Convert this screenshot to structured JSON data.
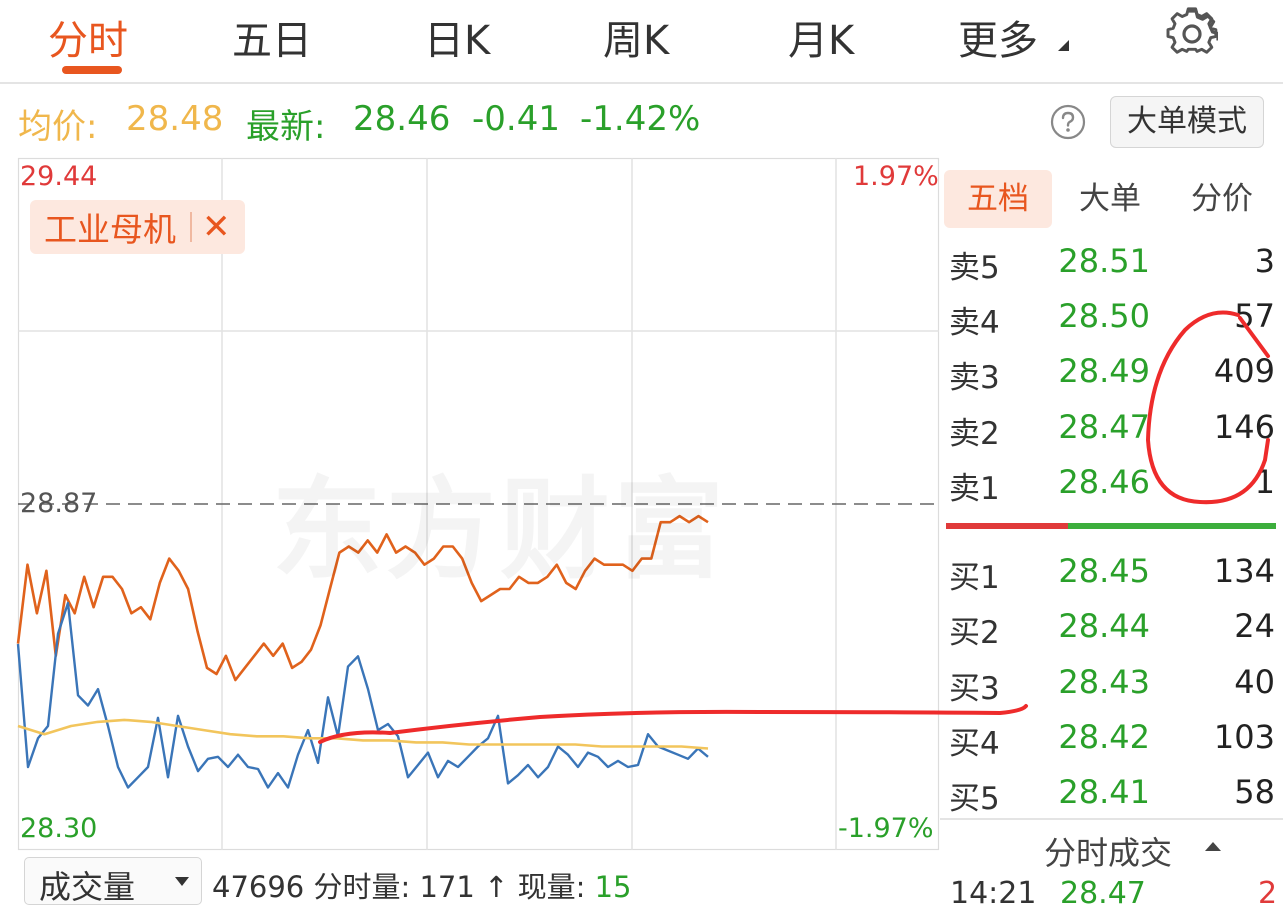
{
  "tabs": [
    {
      "label": "分时",
      "active": true
    },
    {
      "label": "五日"
    },
    {
      "label": "日K"
    },
    {
      "label": "周K"
    },
    {
      "label": "月K"
    },
    {
      "label": "更多"
    }
  ],
  "icons": {
    "settings": "gear-icon",
    "help": "question-circle-icon",
    "close": "close-icon",
    "dropdown": "caret-down-icon"
  },
  "info": {
    "avg_label": "均价:",
    "avg_value": "28.48",
    "last_label": "最新:",
    "last_value": "28.46",
    "change": "-0.41",
    "change_pct": "-1.42%",
    "big_order_button": "大单模式"
  },
  "chart": {
    "price_high": "29.44",
    "price_mid": "28.87",
    "price_low": "28.30",
    "pct_high": "1.97%",
    "pct_low": "-1.97%",
    "watermark": "东方财富",
    "tag_label": "工业母机",
    "close_glyph": "✕"
  },
  "chart_data": {
    "type": "line",
    "ylim": [
      28.3,
      29.44
    ],
    "reference_price": 28.87,
    "pct_range": [
      -1.97,
      1.97
    ],
    "grid": true,
    "series": [
      {
        "color": "#e0621c",
        "y": [
          28.64,
          28.77,
          28.69,
          28.76,
          28.62,
          28.72,
          28.69,
          28.75,
          28.7,
          28.75,
          28.75,
          28.73,
          28.69,
          28.7,
          28.68,
          28.74,
          28.78,
          28.76,
          28.73,
          28.66,
          28.6,
          28.59,
          28.62,
          28.58,
          28.6,
          28.62,
          28.64,
          28.62,
          28.64,
          28.6,
          28.61,
          28.63,
          28.67,
          28.73,
          28.79,
          28.8,
          28.79,
          28.81,
          28.79,
          28.82,
          28.79,
          28.8,
          28.79,
          28.77,
          28.78,
          28.8,
          28.8,
          28.78,
          28.74,
          28.71,
          28.72,
          28.73,
          28.73,
          28.75,
          28.74,
          28.74,
          28.75,
          28.77,
          28.74,
          28.73,
          28.76,
          28.78,
          28.77,
          28.77,
          28.77,
          28.76,
          28.78,
          28.78,
          28.84,
          28.84,
          28.85,
          28.84,
          28.85,
          28.84
        ]
      }
    ],
    "volume": {
      "series": [
        {
          "color": "#3a75b8",
          "y": [
            80,
            20,
            34,
            40,
            85,
            100,
            55,
            50,
            58,
            40,
            20,
            10,
            15,
            20,
            44,
            15,
            45,
            30,
            18,
            24,
            25,
            20,
            26,
            20,
            19,
            10,
            17,
            10,
            26,
            38,
            22,
            54,
            35,
            69,
            74,
            58,
            38,
            41,
            35,
            15,
            21,
            27,
            15,
            23,
            20,
            25,
            30,
            34,
            45,
            12,
            16,
            21,
            15,
            20,
            30,
            26,
            20,
            27,
            25,
            20,
            23,
            20,
            21,
            36,
            30,
            28,
            26,
            24,
            29,
            25
          ]
        },
        {
          "color": "#f2c55c",
          "y": [
            40,
            36,
            40,
            42,
            43,
            42,
            40,
            38,
            36,
            35,
            35,
            34,
            34,
            33,
            33,
            32,
            32,
            31,
            31,
            31,
            31,
            31,
            30,
            30,
            30,
            30,
            29
          ]
        }
      ]
    }
  },
  "panel": {
    "tabs": [
      "五档",
      "大单",
      "分价"
    ],
    "sell": [
      {
        "label": "卖5",
        "price": "28.51",
        "volume": "3"
      },
      {
        "label": "卖4",
        "price": "28.50",
        "volume": "57"
      },
      {
        "label": "卖3",
        "price": "28.49",
        "volume": "409"
      },
      {
        "label": "卖2",
        "price": "28.47",
        "volume": "146"
      },
      {
        "label": "卖1",
        "price": "28.46",
        "volume": "1"
      }
    ],
    "buy": [
      {
        "label": "买1",
        "price": "28.45",
        "volume": "134"
      },
      {
        "label": "买2",
        "price": "28.44",
        "volume": "24"
      },
      {
        "label": "买3",
        "price": "28.43",
        "volume": "40"
      },
      {
        "label": "买4",
        "price": "28.42",
        "volume": "103"
      },
      {
        "label": "买5",
        "price": "28.41",
        "volume": "58"
      }
    ],
    "trades_title": "分时成交",
    "trade_time": "14:21",
    "trade_price": "28.47",
    "trade_volume": "2"
  },
  "bottom": {
    "select_label": "成交量",
    "total_volume": "47696",
    "minute_vol_label": "分时量:",
    "minute_vol_value": "171",
    "up_arrow": "↑",
    "current_vol_label": "现量:",
    "current_vol_value": "15"
  },
  "colors": {
    "accent": "#e8561f",
    "price_line": "#e0621c",
    "volume_line": "#3a75b8",
    "avg_line": "#f2c55c",
    "up": "#e03a3a",
    "down": "#2aa02a",
    "annotation": "#ee2b2b"
  }
}
